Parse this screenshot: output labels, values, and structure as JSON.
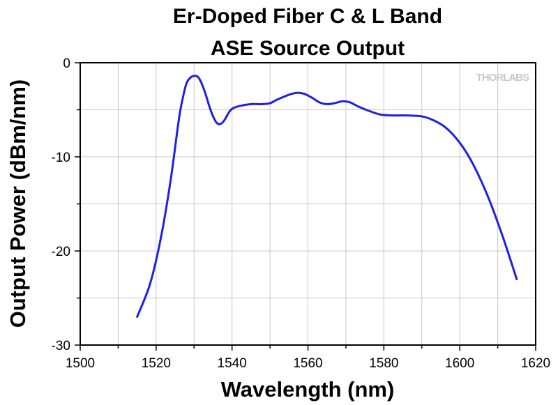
{
  "chart_data": {
    "type": "line",
    "title_lines": [
      "Er-Doped Fiber C & L Band",
      "ASE Source Output"
    ],
    "xlabel": "Wavelength (nm)",
    "ylabel": "Output Power (dBm/nm)",
    "xlim": [
      1500,
      1620
    ],
    "ylim": [
      -30,
      0
    ],
    "xticks": [
      1500,
      1520,
      1540,
      1560,
      1580,
      1600,
      1620
    ],
    "yticks": [
      0,
      -10,
      -20,
      -30
    ],
    "x_minor_step": 10,
    "y_minor_step": 5,
    "grid": true,
    "watermark": "THORLABS",
    "series": [
      {
        "color": "#1f1fe6",
        "points": [
          [
            1515,
            -27.0
          ],
          [
            1518,
            -24.0
          ],
          [
            1520,
            -21.0
          ],
          [
            1522,
            -17.0
          ],
          [
            1524,
            -12.0
          ],
          [
            1526,
            -6.0
          ],
          [
            1527,
            -3.8
          ],
          [
            1528,
            -2.2
          ],
          [
            1529,
            -1.6
          ],
          [
            1530,
            -1.4
          ],
          [
            1531,
            -1.5
          ],
          [
            1532,
            -2.2
          ],
          [
            1533,
            -3.3
          ],
          [
            1534,
            -4.6
          ],
          [
            1535,
            -5.7
          ],
          [
            1536,
            -6.4
          ],
          [
            1537,
            -6.5
          ],
          [
            1538,
            -6.1
          ],
          [
            1539,
            -5.4
          ],
          [
            1540,
            -4.9
          ],
          [
            1542,
            -4.6
          ],
          [
            1545,
            -4.4
          ],
          [
            1548,
            -4.4
          ],
          [
            1550,
            -4.3
          ],
          [
            1552,
            -3.9
          ],
          [
            1555,
            -3.4
          ],
          [
            1557,
            -3.2
          ],
          [
            1559,
            -3.3
          ],
          [
            1561,
            -3.7
          ],
          [
            1563,
            -4.2
          ],
          [
            1565,
            -4.4
          ],
          [
            1567,
            -4.3
          ],
          [
            1569,
            -4.1
          ],
          [
            1571,
            -4.2
          ],
          [
            1573,
            -4.6
          ],
          [
            1576,
            -5.1
          ],
          [
            1579,
            -5.5
          ],
          [
            1582,
            -5.6
          ],
          [
            1586,
            -5.6
          ],
          [
            1590,
            -5.7
          ],
          [
            1593,
            -6.1
          ],
          [
            1596,
            -6.8
          ],
          [
            1599,
            -8.0
          ],
          [
            1602,
            -9.7
          ],
          [
            1605,
            -12.0
          ],
          [
            1608,
            -14.8
          ],
          [
            1611,
            -18.1
          ],
          [
            1613,
            -20.5
          ],
          [
            1615,
            -23.0
          ]
        ]
      }
    ]
  }
}
